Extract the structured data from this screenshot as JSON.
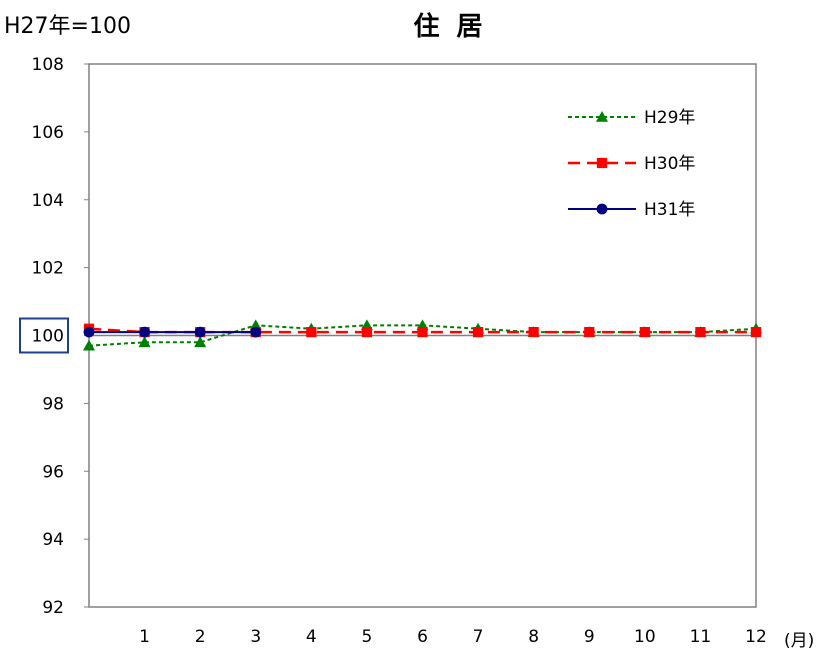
{
  "header": {
    "base_label": "H27年=100",
    "title": "住 居"
  },
  "chart_data": {
    "type": "line",
    "title": "住 居",
    "xlabel": "(月)",
    "ylabel": "",
    "x": [
      0,
      1,
      2,
      3,
      4,
      5,
      6,
      7,
      8,
      9,
      10,
      11,
      12
    ],
    "x_tick_labels": [
      "",
      "1",
      "2",
      "3",
      "4",
      "5",
      "6",
      "7",
      "8",
      "9",
      "10",
      "11",
      "12"
    ],
    "ylim": [
      92,
      108
    ],
    "y_ticks": [
      92,
      94,
      96,
      98,
      100,
      102,
      104,
      106,
      108
    ],
    "highlighted_y_tick": "100",
    "reference_line": 100,
    "grid": false,
    "legend_position": "top-right",
    "series": [
      {
        "name": "H29年",
        "color": "#008000",
        "dash": "dotted",
        "marker": "triangle",
        "values": [
          99.7,
          99.8,
          99.8,
          100.3,
          100.2,
          100.3,
          100.3,
          100.2,
          100.1,
          100.1,
          100.1,
          100.1,
          100.2
        ]
      },
      {
        "name": "H30年",
        "color": "#ff0000",
        "dash": "dashed",
        "marker": "square",
        "values": [
          100.2,
          100.1,
          100.1,
          100.1,
          100.1,
          100.1,
          100.1,
          100.1,
          100.1,
          100.1,
          100.1,
          100.1,
          100.1
        ]
      },
      {
        "name": "H31年",
        "color": "#000080",
        "dash": "solid",
        "marker": "circle",
        "values": [
          100.1,
          100.1,
          100.1,
          100.1,
          null,
          null,
          null,
          null,
          null,
          null,
          null,
          null,
          null
        ]
      }
    ]
  }
}
